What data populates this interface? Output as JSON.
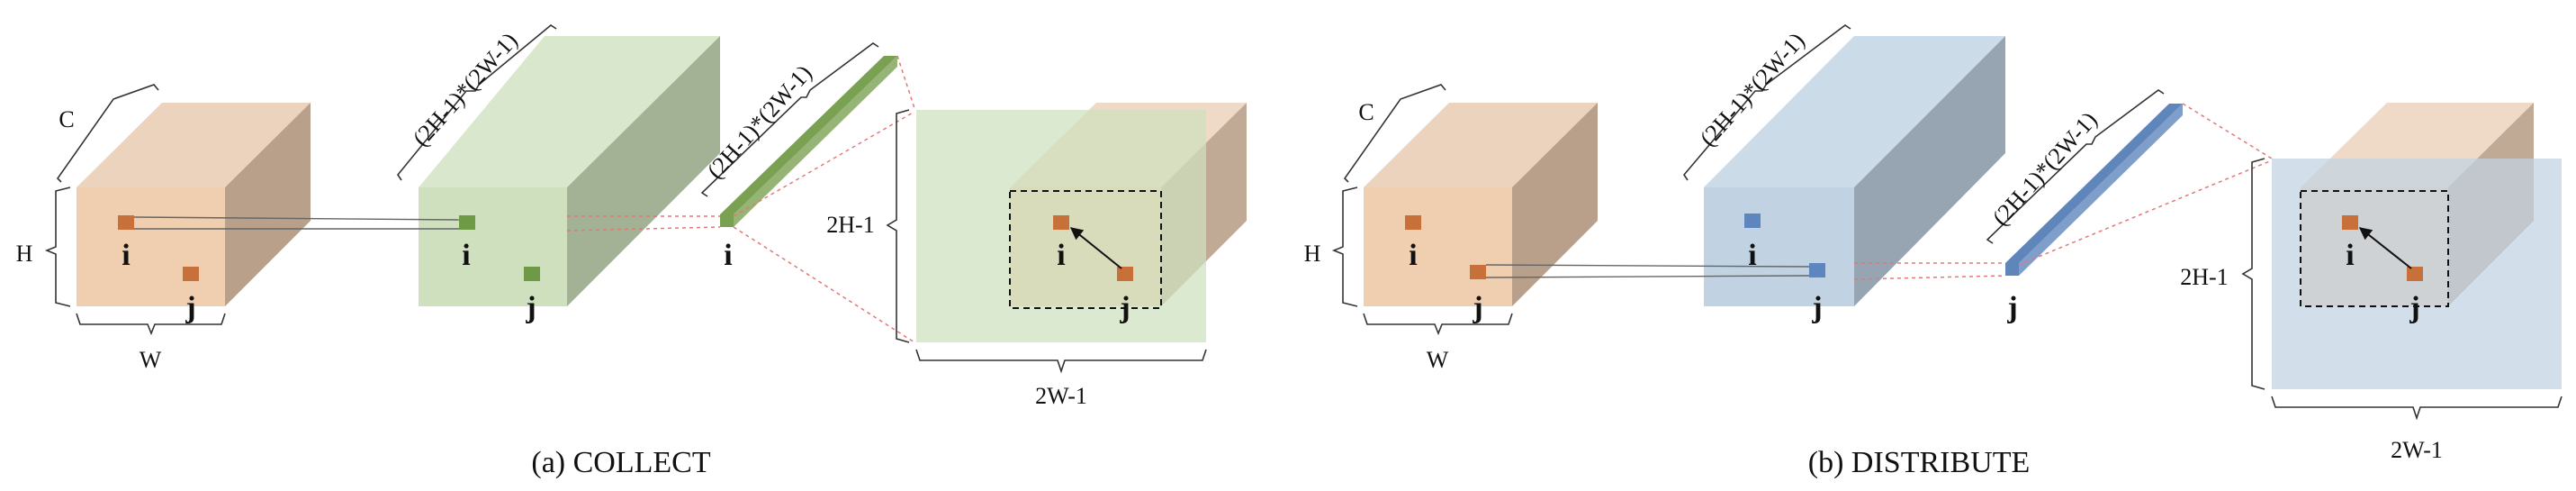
{
  "colors": {
    "orange_front": "#f0cfb0",
    "orange_top": "#ecd3bd",
    "orange_side": "#b9a08a",
    "green_front": "#cfe0bf",
    "green_top": "#d9e8cc",
    "green_side": "#a3b294",
    "green_bar": "#7aa152",
    "blue_front": "#c1d3e3",
    "blue_top": "#cbdbe8",
    "blue_side": "#97a5b3",
    "blue_bar": "#5f86bb",
    "dot_orange": "#c8703a",
    "dot_green": "#6e9a45",
    "dot_blue": "#5d86c0",
    "guide_red": "#e27878"
  },
  "collect": {
    "caption": "(a) COLLECT",
    "input": {
      "c": "C",
      "h": "H",
      "w": "W",
      "i": "i",
      "j": "j"
    },
    "mid": {
      "dim": "(2H-1)*(2W-1)",
      "i": "i",
      "j": "j"
    },
    "bar": {
      "dim": "(2H-1)*(2W-1)",
      "i": "i"
    },
    "map": {
      "h": "2H-1",
      "w": "2W-1",
      "i": "i",
      "j": "j"
    }
  },
  "distribute": {
    "caption": "(b) DISTRIBUTE",
    "input": {
      "c": "C",
      "h": "H",
      "w": "W",
      "i": "i",
      "j": "j"
    },
    "mid": {
      "dim": "(2H-1)*(2W-1)",
      "i": "i",
      "j": "j"
    },
    "bar": {
      "dim": "(2H-1)*(2W-1)",
      "j": "j"
    },
    "map": {
      "h": "2H-1",
      "w": "2W-1",
      "i": "i",
      "j": "j"
    }
  }
}
